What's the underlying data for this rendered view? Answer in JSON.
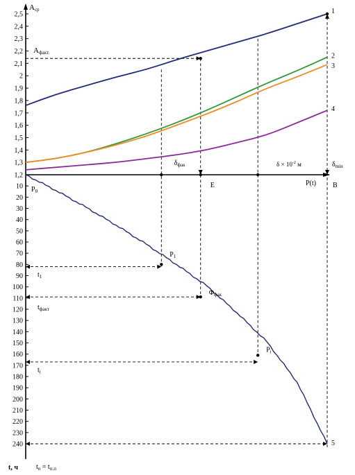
{
  "chart_data": [
    {
      "type": "line",
      "title": "",
      "ylabel": "A_cp",
      "ylim": [
        1.2,
        2.5
      ],
      "yticks": [
        "1,2",
        "1,3",
        "1,4",
        "1,5",
        "1,6",
        "1,7",
        "1,8",
        "1,9",
        "2",
        "2,1",
        "2,2",
        "2,3",
        "2,4",
        "2,5"
      ],
      "series": [
        {
          "name": "1",
          "color": "#1f2a7a",
          "x": [
            0,
            10,
            20,
            30,
            40,
            50,
            60,
            70,
            80,
            90,
            100
          ],
          "values": [
            1.76,
            1.85,
            1.92,
            1.99,
            2.05,
            2.13,
            2.2,
            2.27,
            2.34,
            2.42,
            2.5
          ]
        },
        {
          "name": "2",
          "color": "#2e9a3a",
          "x": [
            0,
            10,
            20,
            30,
            40,
            50,
            60,
            70,
            80,
            90,
            100
          ],
          "values": [
            1.3,
            1.33,
            1.38,
            1.45,
            1.53,
            1.62,
            1.72,
            1.83,
            1.94,
            2.04,
            2.15
          ]
        },
        {
          "name": "3",
          "color": "#f08a24",
          "x": [
            0,
            10,
            20,
            30,
            40,
            50,
            60,
            70,
            80,
            90,
            100
          ],
          "values": [
            1.3,
            1.33,
            1.38,
            1.44,
            1.51,
            1.6,
            1.69,
            1.79,
            1.9,
            1.99,
            2.09
          ]
        },
        {
          "name": "4",
          "color": "#8a2a9a",
          "x": [
            0,
            10,
            20,
            30,
            40,
            50,
            60,
            70,
            80,
            90,
            100
          ],
          "values": [
            1.24,
            1.26,
            1.28,
            1.3,
            1.33,
            1.36,
            1.4,
            1.46,
            1.52,
            1.62,
            1.72
          ]
        }
      ],
      "annotations": {
        "a_label": "A",
        "a_sub": "факт.",
        "delta_label": "δ",
        "delta_sub": "фак",
        "scale_label": "δ × 10",
        "scale_exp": "-2",
        "scale_unit": "м",
        "delta_min_label": "δ",
        "delta_min_sub": "min",
        "p_axis_label": "P(t)",
        "point_b": "B",
        "point_e": "E"
      }
    },
    {
      "type": "line",
      "ylabel": "t, ч",
      "ylim": [
        0,
        240
      ],
      "yticks": [
        "10",
        "20",
        "30",
        "40",
        "50",
        "60",
        "70",
        "80",
        "90",
        "100",
        "110",
        "120",
        "130",
        "140",
        "150",
        "160",
        "170",
        "180",
        "190",
        "200",
        "210",
        "220",
        "230",
        "240"
      ],
      "series": [
        {
          "name": "5",
          "color": "#1f2a7a",
          "x": [
            0,
            10,
            20,
            30,
            40,
            50,
            60,
            70,
            80,
            90,
            100
          ],
          "values": [
            0,
            14,
            29,
            45,
            62,
            80,
            99,
            123,
            149,
            185,
            240
          ]
        }
      ],
      "annotations": {
        "p0_label": "P",
        "p0_sub": "0",
        "p1_label": "P",
        "p1_sub": "1",
        "pi_label": "P",
        "pi_sub": "i",
        "phi_label": "Φ",
        "phi_sub": "фак",
        "t1_label": "t",
        "t1_sub": "1",
        "tfact_label": "t",
        "tfact_sub": "факт",
        "ti_label": "t",
        "ti_sub": "i",
        "tn_label": "t",
        "tn_sub": "n",
        "tn_eq": "= t",
        "tn_eq_sub": "п.п"
      }
    }
  ]
}
